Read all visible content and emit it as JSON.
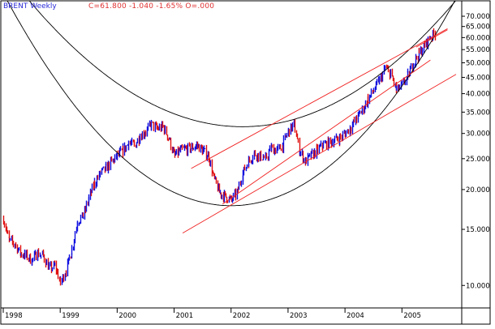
{
  "header": {
    "symbol": "BRENT Weekly",
    "quote": "C=61.800  -1.040  -1.65%  O=.000"
  },
  "colors": {
    "background": "#ffffff",
    "frame": "#000000",
    "arc": "#000000",
    "channel": "#f02020",
    "bar_up": "#1010e0",
    "bar_down": "#e01010",
    "header_symbol": "#2a2ad8",
    "header_quote": "#e03030"
  },
  "chart_data": {
    "type": "bar",
    "title": "BRENT Weekly",
    "y_scale": "log",
    "ylim": [
      8.6,
      76
    ],
    "xlim": [
      1998.0,
      2005.95
    ],
    "x_tick_labels": [
      "1998",
      "1999",
      "2000",
      "2001",
      "2002",
      "2003",
      "2004",
      "2005"
    ],
    "y_tick_labels": [
      "10.000",
      "15.000",
      "20.000",
      "25.000",
      "30.000",
      "35.000",
      "40.000",
      "45.000",
      "50.000",
      "55.000",
      "60.000",
      "65.000",
      "70.000"
    ],
    "y_ticks": [
      10,
      15,
      20,
      25,
      30,
      35,
      40,
      45,
      50,
      55,
      60,
      65,
      70
    ],
    "series": [
      {
        "x": [
          1998.0,
          1998.1,
          1998.2,
          1998.3,
          1998.4,
          1998.5,
          1998.6,
          1998.7,
          1998.8,
          1998.9,
          1999.0,
          1999.1,
          1999.2,
          1999.3,
          1999.4,
          1999.5,
          1999.6,
          1999.7,
          1999.8,
          1999.9,
          2000.0,
          2000.1,
          2000.2,
          2000.3,
          2000.4,
          2000.5,
          2000.6,
          2000.7,
          2000.8,
          2000.9,
          2001.0,
          2001.1,
          2001.2,
          2001.3,
          2001.4,
          2001.5,
          2001.6,
          2001.7,
          2001.8,
          2001.9,
          2002.0,
          2002.1,
          2002.2,
          2002.3,
          2002.4,
          2002.5,
          2002.6,
          2002.7,
          2002.8,
          2002.9,
          2003.0,
          2003.1,
          2003.2,
          2003.3,
          2003.4,
          2003.5,
          2003.6,
          2003.7,
          2003.8,
          2003.9,
          2004.0,
          2004.1,
          2004.2,
          2004.3,
          2004.4,
          2004.5,
          2004.6,
          2004.7,
          2004.8,
          2004.9,
          2005.0,
          2005.1,
          2005.2,
          2005.3,
          2005.4,
          2005.5,
          2005.58
        ],
        "values": [
          16.2,
          13.8,
          13.5,
          12.6,
          12.4,
          12.0,
          12.6,
          12.4,
          11.3,
          11.5,
          10.2,
          11.2,
          13.0,
          16.0,
          16.5,
          18.8,
          21.0,
          22.5,
          23.3,
          24.5,
          25.5,
          26.5,
          28.0,
          27.5,
          29.5,
          30.5,
          32.0,
          31.0,
          31.5,
          29.0,
          25.5,
          26.5,
          26.8,
          27.0,
          27.5,
          26.5,
          25.5,
          21.5,
          19.5,
          19.0,
          18.5,
          19.5,
          22.5,
          24.5,
          26.0,
          25.5,
          25.0,
          27.0,
          26.5,
          27.5,
          30.5,
          32.0,
          26.5,
          24.5,
          25.5,
          26.5,
          27.5,
          28.0,
          28.5,
          29.0,
          30.0,
          31.5,
          33.5,
          35.5,
          38.5,
          41.0,
          44.0,
          48.0,
          46.0,
          41.0,
          42.5,
          45.5,
          50.0,
          53.5,
          57.0,
          60.5,
          61.8
        ]
      }
    ],
    "last": {
      "close": 61.8,
      "change": -1.04,
      "change_pct": -1.65,
      "open": 0.0
    }
  }
}
